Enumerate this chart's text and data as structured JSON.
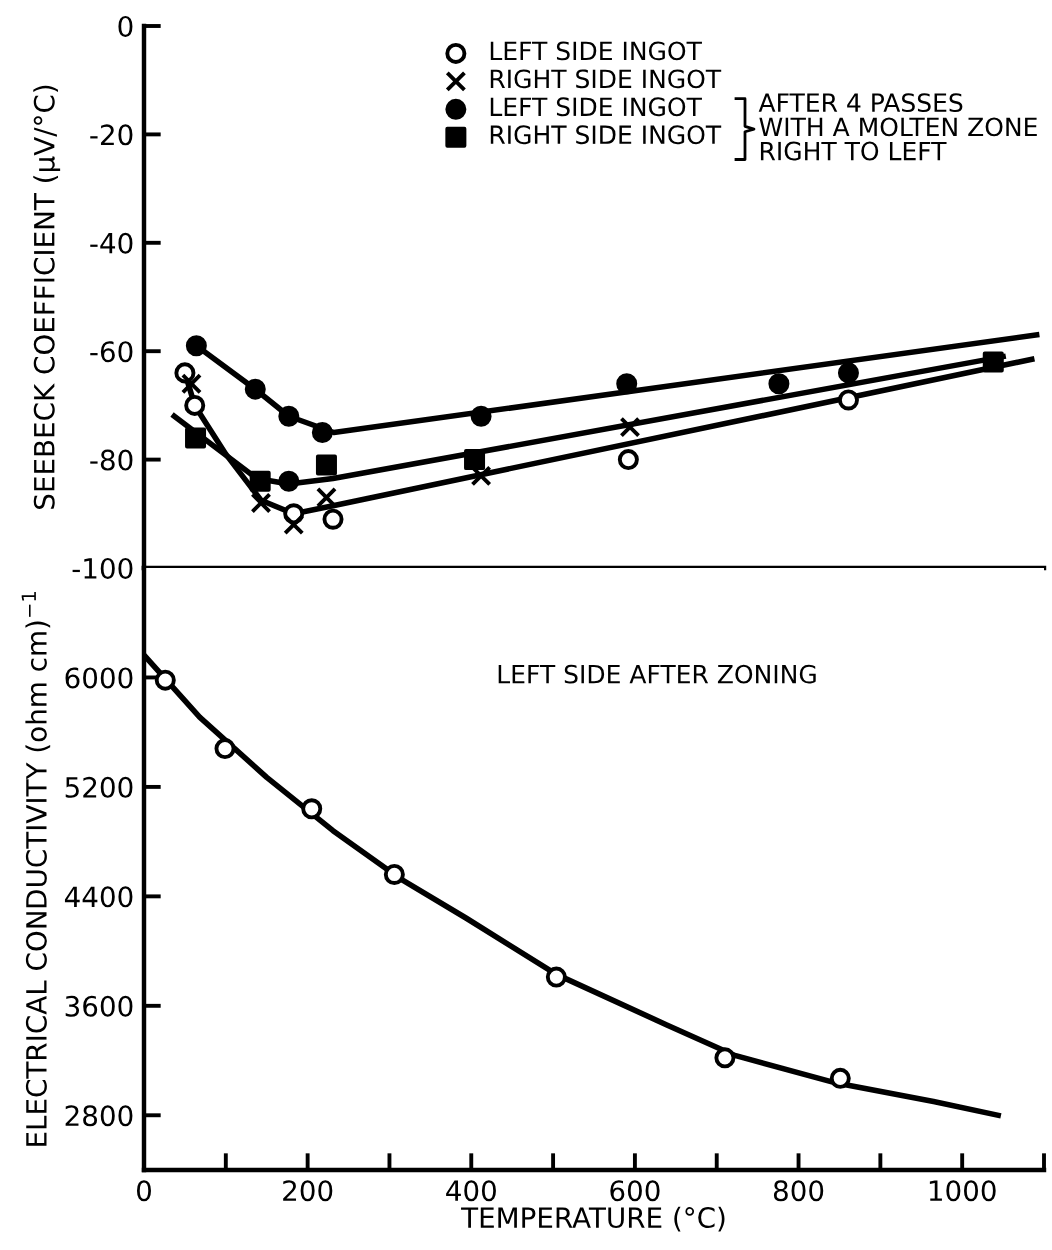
{
  "chart_data": [
    {
      "type": "scatter",
      "ylabel": "SEEBECK COEFFICIENT (μV/°C)",
      "xlim": [
        0,
        1100
      ],
      "ylim": [
        -100,
        0
      ],
      "yticks": [
        0,
        -20,
        -40,
        -60,
        -80,
        -100
      ],
      "tick_labels": "y",
      "legend": "top",
      "grid": false,
      "annotations": [
        "AFTER 4 PASSES\nWITH A MOLTEN ZONE\nRIGHT TO LEFT"
      ],
      "series": [
        {
          "name": "LEFT SIDE INGOT",
          "marker": "circle-open",
          "color": "#000000",
          "x": [
            50,
            62,
            183,
            231,
            592,
            861
          ],
          "values": [
            -64,
            -70,
            -90,
            -91,
            -80,
            -69
          ]
        },
        {
          "name": "RIGHT SIDE INGOT",
          "marker": "cross",
          "color": "#000000",
          "x": [
            58,
            143,
            183,
            223,
            412,
            594
          ],
          "values": [
            -66,
            -88,
            -92,
            -87,
            -83,
            -74
          ]
        },
        {
          "name": "LEFT SIDE INGOT",
          "marker": "circle",
          "color": "#000000",
          "x": [
            64,
            136,
            177,
            218,
            412,
            590,
            776,
            861,
            177
          ],
          "values": [
            -59,
            -67,
            -72,
            -75,
            -72,
            -66,
            -66,
            -64,
            -84
          ]
        },
        {
          "name": "RIGHT SIDE INGOT",
          "marker": "square",
          "color": "#000000",
          "x": [
            63,
            142,
            223,
            404,
            1038
          ],
          "values": [
            -76,
            -84,
            -81,
            -80,
            -62
          ]
        },
        {
          "type": "line",
          "marker": "none",
          "color": "#000000",
          "x": [
            64,
            136,
            177,
            232,
            1091
          ],
          "values": [
            -59,
            -67,
            -72,
            -75,
            -57
          ]
        },
        {
          "type": "line",
          "marker": "none",
          "color": "#000000",
          "x": [
            37,
            138,
            177,
            231,
            1050
          ],
          "values": [
            -72,
            -83.5,
            -84.5,
            -83.5,
            -61
          ]
        },
        {
          "type": "line",
          "marker": "none",
          "color": "#000000",
          "x": [
            50,
            62,
            100,
            143,
            183,
            231,
            1085
          ],
          "values": [
            -64,
            -70,
            -79,
            -87.5,
            -90,
            -88.5,
            -61.5
          ]
        }
      ]
    },
    {
      "type": "scatter",
      "xlabel": "TEMPERATURE (°C)",
      "ylabel": "ELECTRICAL CONDUCTIVITY (ohm cm)$^{−1}$",
      "xlim": [
        0,
        1100
      ],
      "ylim": [
        2400,
        6800
      ],
      "yticks": [
        2800,
        3600,
        4400,
        5200,
        6000
      ],
      "xticks": [
        0,
        {
          "value": 100,
          "label": null
        },
        200,
        {
          "value": 300,
          "label": null
        },
        400,
        {
          "value": 500,
          "label": null
        },
        600,
        {
          "value": 700,
          "label": null
        },
        800,
        {
          "value": 900,
          "label": null
        },
        1000,
        {
          "value": 1100,
          "label": null
        }
      ],
      "grid": false,
      "legend": false,
      "annotations": [
        "LEFT SIDE AFTER ZONING"
      ],
      "series": [
        {
          "marker": "circle-open",
          "color": "#000000",
          "x": [
            26,
            99,
            205,
            306,
            504,
            710,
            851
          ],
          "values": [
            5980,
            5480,
            5040,
            4560,
            3810,
            3220,
            3070
          ]
        },
        {
          "type": "line",
          "marker": "none",
          "color": "#000000",
          "x": [
            2,
            68,
            150,
            231,
            313,
            394,
            504,
            639,
            721,
            843,
            965,
            1044
          ],
          "values": [
            6150,
            5710,
            5270,
            4880,
            4530,
            4240,
            3830,
            3460,
            3240,
            3040,
            2900,
            2800
          ]
        }
      ]
    }
  ]
}
